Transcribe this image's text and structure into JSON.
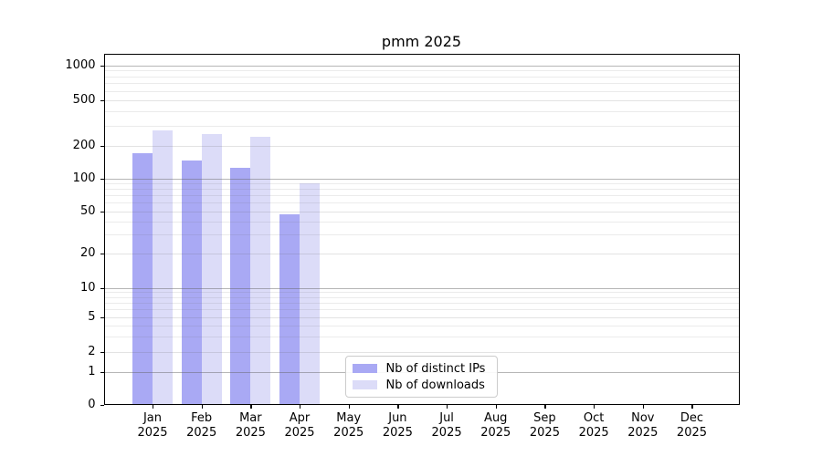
{
  "chart_data": {
    "type": "bar",
    "title": "pmm 2025",
    "x_categories": [
      "Jan",
      "Feb",
      "Mar",
      "Apr",
      "May",
      "Jun",
      "Jul",
      "Aug",
      "Sep",
      "Oct",
      "Nov",
      "Dec"
    ],
    "x_year_suffix": "2025",
    "series": [
      {
        "name": "Nb of distinct IPs",
        "color": "#a9a9f4",
        "values": [
          170,
          148,
          127,
          47,
          0,
          0,
          0,
          0,
          0,
          0,
          0,
          0
        ]
      },
      {
        "name": "Nb of downloads",
        "color": "#dcdcf8",
        "values": [
          275,
          255,
          240,
          90,
          0,
          0,
          0,
          0,
          0,
          0,
          0,
          0
        ]
      }
    ],
    "y_axis": {
      "scale": "symlog-like",
      "tick_values": [
        0,
        1,
        2,
        5,
        10,
        20,
        50,
        100,
        200,
        500,
        1000
      ],
      "tick_labels": [
        "0",
        "1",
        "2",
        "5",
        "10",
        "20",
        "50",
        "100",
        "200",
        "500",
        "1000"
      ]
    },
    "ylim": [
      0,
      1270
    ],
    "grid": "horizontal (major darker at powers of 10, light minors)",
    "legend_position": "lower center"
  }
}
